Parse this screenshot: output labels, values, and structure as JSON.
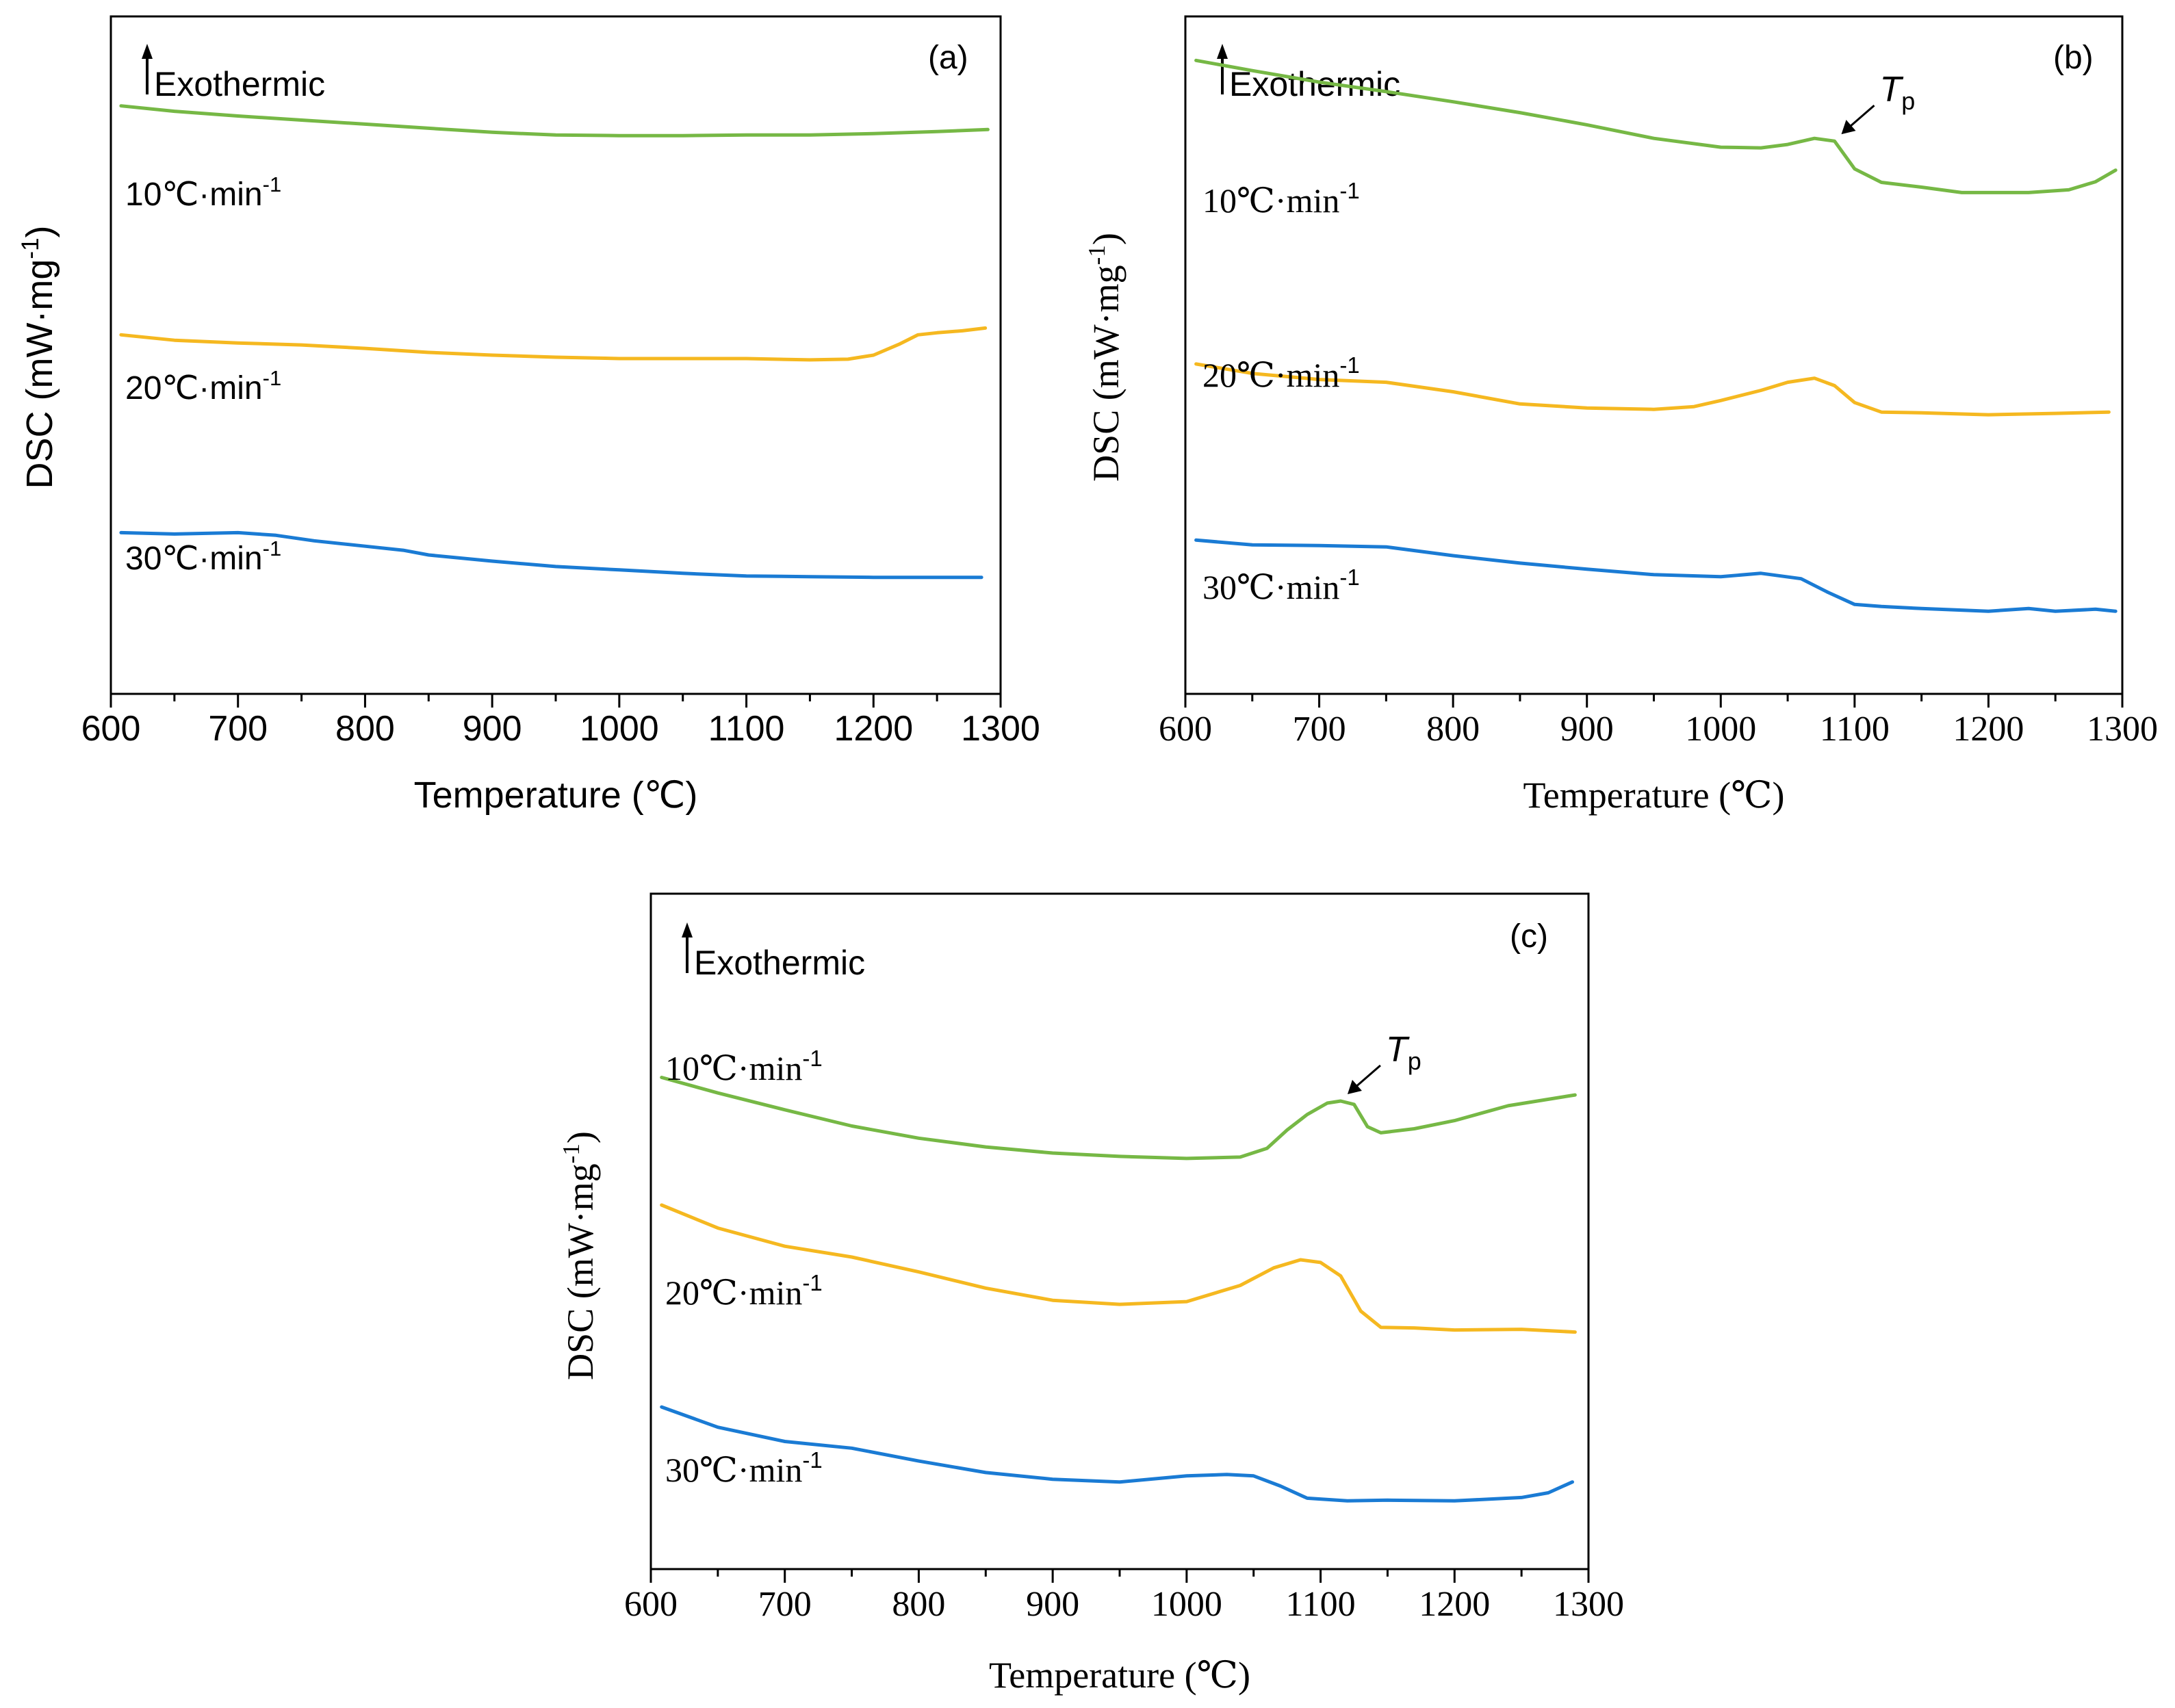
{
  "chart_data": [
    {
      "id": "a",
      "type": "line",
      "panel_label": "(a)",
      "xlabel": "Temperature (℃)",
      "ylabel": "DSC (mW·mg",
      "ylabel_sup": "-1",
      "ylabel_close": ")",
      "exo_label": "Exothermic",
      "xlim": [
        600,
        1300
      ],
      "ylim": [
        0,
        100
      ],
      "xticks": [
        "600",
        "700",
        "800",
        "900",
        "1000",
        "1100",
        "1200",
        "1300"
      ],
      "series": [
        {
          "name": "10℃·min",
          "sup": "-1",
          "color": "#76b845",
          "x": [
            608,
            650,
            700,
            750,
            800,
            850,
            900,
            950,
            1000,
            1050,
            1100,
            1150,
            1200,
            1250,
            1290
          ],
          "y": [
            86.8,
            86.0,
            85.3,
            84.7,
            84.1,
            83.5,
            82.9,
            82.5,
            82.4,
            82.4,
            82.5,
            82.5,
            82.7,
            83.0,
            83.3
          ]
        },
        {
          "name": "20℃·min",
          "sup": "-1",
          "color": "#f5b820",
          "x": [
            608,
            650,
            700,
            750,
            800,
            850,
            900,
            950,
            1000,
            1050,
            1100,
            1150,
            1180,
            1200,
            1220,
            1235,
            1250,
            1270,
            1288
          ],
          "y": [
            53.0,
            52.2,
            51.8,
            51.5,
            51.0,
            50.4,
            50.0,
            49.7,
            49.5,
            49.5,
            49.5,
            49.3,
            49.4,
            50.0,
            51.6,
            53.0,
            53.3,
            53.6,
            54.0
          ]
        },
        {
          "name": "30℃·min",
          "sup": "-1",
          "color": "#1a7bd4",
          "x": [
            608,
            650,
            700,
            730,
            760,
            800,
            830,
            850,
            900,
            950,
            1000,
            1050,
            1100,
            1150,
            1200,
            1250,
            1285
          ],
          "y": [
            23.8,
            23.6,
            23.8,
            23.4,
            22.6,
            21.8,
            21.2,
            20.5,
            19.6,
            18.8,
            18.3,
            17.8,
            17.4,
            17.3,
            17.2,
            17.2,
            17.2
          ]
        }
      ],
      "annotations": []
    },
    {
      "id": "b",
      "type": "line",
      "panel_label": "(b)",
      "xlabel": "Temperature (℃)",
      "ylabel": "DSC (mW·mg",
      "ylabel_sup": "-1",
      "ylabel_close": ")",
      "exo_label": "Exothermic",
      "xlim": [
        600,
        1300
      ],
      "ylim": [
        0,
        100
      ],
      "xticks": [
        "600",
        "700",
        "800",
        "900",
        "1000",
        "1100",
        "1200",
        "1300"
      ],
      "series": [
        {
          "name": "10℃·min",
          "sup": "-1",
          "color": "#76b845",
          "x": [
            608,
            650,
            700,
            750,
            800,
            850,
            900,
            950,
            1000,
            1030,
            1050,
            1070,
            1085,
            1100,
            1120,
            1150,
            1180,
            1200,
            1230,
            1260,
            1280,
            1295
          ],
          "y": [
            93.5,
            92.0,
            90.3,
            88.9,
            87.4,
            85.8,
            84.0,
            82.0,
            80.7,
            80.6,
            81.1,
            82.0,
            81.6,
            77.5,
            75.5,
            74.8,
            74.0,
            74.0,
            74.0,
            74.4,
            75.6,
            77.3
          ]
        },
        {
          "name": "20℃·min",
          "sup": "-1",
          "color": "#f5b820",
          "x": [
            608,
            650,
            700,
            750,
            800,
            850,
            900,
            950,
            980,
            1000,
            1030,
            1050,
            1070,
            1085,
            1100,
            1120,
            1150,
            1200,
            1250,
            1290
          ],
          "y": [
            48.7,
            47.3,
            46.4,
            46.0,
            44.6,
            42.8,
            42.2,
            42.0,
            42.4,
            43.3,
            44.8,
            46.0,
            46.6,
            45.5,
            43.0,
            41.6,
            41.5,
            41.2,
            41.4,
            41.6
          ]
        },
        {
          "name": "30℃·min",
          "sup": "-1",
          "color": "#1a7bd4",
          "x": [
            608,
            650,
            700,
            750,
            800,
            850,
            900,
            950,
            1000,
            1030,
            1060,
            1080,
            1100,
            1120,
            1150,
            1200,
            1230,
            1250,
            1280,
            1295
          ],
          "y": [
            22.7,
            22.0,
            21.9,
            21.7,
            20.4,
            19.3,
            18.4,
            17.6,
            17.3,
            17.8,
            17.0,
            15.0,
            13.2,
            12.9,
            12.6,
            12.2,
            12.6,
            12.2,
            12.5,
            12.2
          ]
        }
      ],
      "annotations": [
        {
          "text": "T",
          "sub": "p",
          "series": 0,
          "x": 1085
        }
      ]
    },
    {
      "id": "c",
      "type": "line",
      "panel_label": "(c)",
      "xlabel": "Temperature (℃)",
      "ylabel": "DSC (mW·mg",
      "ylabel_sup": "-1",
      "ylabel_close": ")",
      "exo_label": "Exothermic",
      "xlim": [
        600,
        1300
      ],
      "ylim": [
        0,
        100
      ],
      "xticks": [
        "600",
        "700",
        "800",
        "900",
        "1000",
        "1100",
        "1200",
        "1300"
      ],
      "series": [
        {
          "name": "10℃·min",
          "sup": "-1",
          "color": "#76b845",
          "x": [
            608,
            650,
            700,
            750,
            800,
            850,
            900,
            950,
            1000,
            1040,
            1060,
            1075,
            1090,
            1105,
            1115,
            1125,
            1135,
            1145,
            1170,
            1200,
            1240,
            1290
          ],
          "y": [
            72.8,
            70.5,
            68.0,
            65.6,
            63.8,
            62.5,
            61.6,
            61.1,
            60.8,
            61.0,
            62.3,
            65.0,
            67.3,
            69.0,
            69.3,
            68.8,
            65.5,
            64.6,
            65.2,
            66.4,
            68.6,
            70.2
          ]
        },
        {
          "name": "20℃·min",
          "sup": "-1",
          "color": "#f5b820",
          "x": [
            608,
            650,
            700,
            750,
            800,
            850,
            900,
            950,
            1000,
            1040,
            1065,
            1085,
            1100,
            1115,
            1130,
            1145,
            1170,
            1200,
            1250,
            1290
          ],
          "y": [
            53.9,
            50.5,
            47.8,
            46.2,
            44.0,
            41.6,
            39.8,
            39.2,
            39.6,
            42.0,
            44.6,
            45.8,
            45.4,
            43.4,
            38.2,
            35.8,
            35.7,
            35.4,
            35.5,
            35.1
          ]
        },
        {
          "name": "30℃·min",
          "sup": "-1",
          "color": "#1a7bd4",
          "x": [
            608,
            650,
            700,
            750,
            800,
            850,
            900,
            950,
            1000,
            1030,
            1050,
            1070,
            1090,
            1120,
            1150,
            1200,
            1250,
            1270,
            1288
          ],
          "y": [
            24.0,
            21.0,
            18.9,
            17.9,
            16.0,
            14.3,
            13.3,
            12.9,
            13.8,
            14.0,
            13.8,
            12.3,
            10.5,
            10.1,
            10.2,
            10.1,
            10.6,
            11.3,
            12.9
          ]
        }
      ],
      "annotations": [
        {
          "text": "T",
          "sub": "p",
          "series": 0,
          "x": 1118
        }
      ]
    }
  ]
}
